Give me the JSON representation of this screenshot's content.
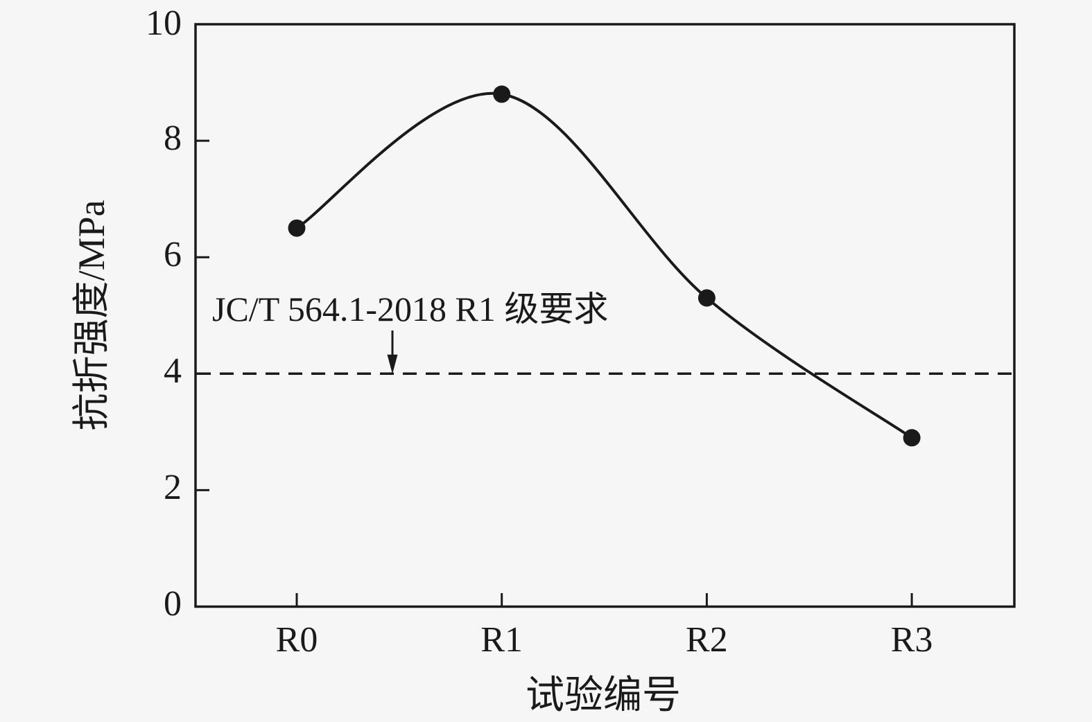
{
  "chart_data": {
    "type": "line",
    "categories": [
      "R0",
      "R1",
      "R2",
      "R3"
    ],
    "values": [
      6.5,
      8.8,
      5.3,
      2.9
    ],
    "xlabel": "试验编号",
    "ylabel": "抗折强度/MPa",
    "ylim": [
      0,
      10
    ],
    "yticks": [
      0,
      2,
      4,
      6,
      8,
      10
    ],
    "grid": false,
    "legend": "none",
    "curve_style": "smooth-spline",
    "marker_style": "filled-circle",
    "line_color": "#1a1a1a",
    "background_color": "#f6f6f6",
    "threshold": {
      "value": 4,
      "label": "JC/T 564.1-2018 R1 级要求",
      "line_style": "dashed",
      "annotation_arrow": "down"
    }
  }
}
